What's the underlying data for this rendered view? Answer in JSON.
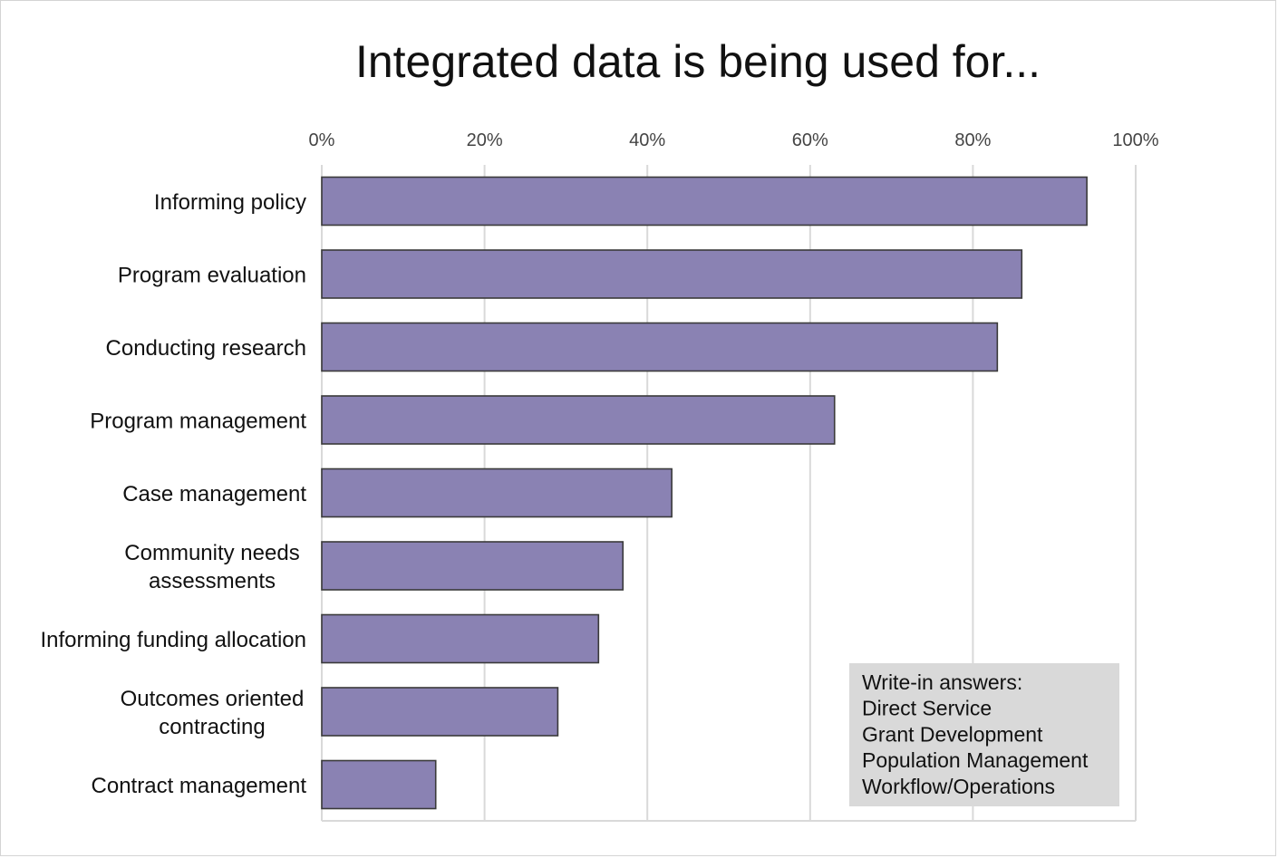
{
  "chart_data": {
    "type": "bar",
    "orientation": "horizontal",
    "title": "Integrated data is being used for...",
    "categories": [
      [
        "Informing policy"
      ],
      [
        "Program evaluation"
      ],
      [
        "Conducting research"
      ],
      [
        "Program management"
      ],
      [
        "Case management"
      ],
      [
        "Community needs",
        "assessments"
      ],
      [
        "Informing funding allocation"
      ],
      [
        "Outcomes oriented",
        "contracting"
      ],
      [
        "Contract management"
      ]
    ],
    "values": [
      94,
      86,
      83,
      63,
      43,
      37,
      34,
      29,
      14
    ],
    "xlim": [
      0,
      100
    ],
    "xticks": [
      "0%",
      "20%",
      "40%",
      "60%",
      "80%",
      "100%"
    ],
    "x_axis_position": "top",
    "grid": true,
    "bar_color": "#8a82b3",
    "bar_border_color": "#3a3a3a",
    "annotation": {
      "lines": [
        "Write-in answers:",
        "Direct Service",
        "Grant Development",
        "Population Management",
        "Workflow/Operations"
      ],
      "background": "#d9d9d9",
      "placement": "bottom-right"
    }
  }
}
